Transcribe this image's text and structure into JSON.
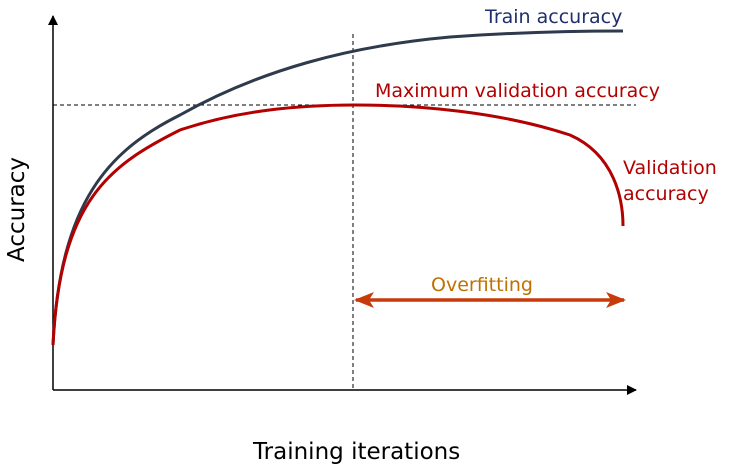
{
  "diagram": {
    "xlabel": "Training iterations",
    "ylabel": "Accuracy",
    "curves": {
      "train": {
        "label": "Train accuracy",
        "color": "#2f3b4c",
        "label_color": "#1f2f6e"
      },
      "validation": {
        "label_line1": "Validation",
        "label_line2": "accuracy",
        "color": "#b30000"
      }
    },
    "max_validation": {
      "label": "Maximum validation accuracy",
      "color": "#b30000"
    },
    "overfitting": {
      "label": "Overfitting",
      "label_color": "#c07000",
      "arrow_color": "#c83a0a"
    },
    "axis_color": "#000000"
  }
}
